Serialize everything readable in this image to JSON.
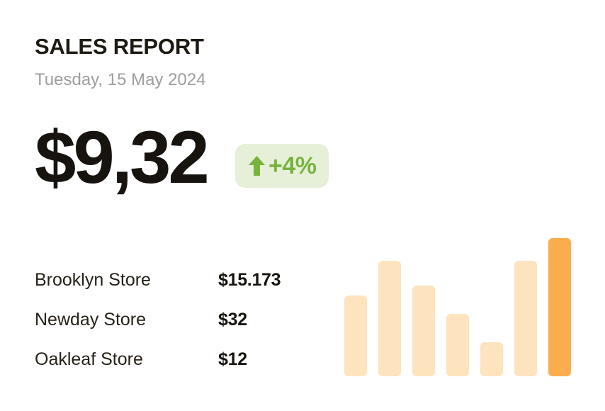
{
  "header": {
    "title": "SALES REPORT",
    "date": "Tuesday, 15 May 2024"
  },
  "summary": {
    "amount": "$9,32",
    "change": "+4%",
    "trend_icon": "arrow-up-icon"
  },
  "stores": {
    "items": [
      {
        "name": "Brooklyn Store",
        "value": "$15.173"
      },
      {
        "name": "Newday Store",
        "value": "$32"
      },
      {
        "name": "Oakleaf Store",
        "value": "$12"
      }
    ]
  },
  "chart_data": {
    "type": "bar",
    "values": [
      114,
      163,
      128,
      88,
      48,
      163,
      195
    ],
    "categories": [
      "",
      "",
      "",
      "",
      "",
      "",
      ""
    ],
    "highlight_index": 6,
    "title": "",
    "xlabel": "",
    "ylabel": "",
    "ylim": [
      0,
      195
    ],
    "grid": false,
    "legend": false,
    "bar_color": "#FDE3BE",
    "highlight_color": "#FBAD4D"
  },
  "colors": {
    "accent_green": "#77B33D",
    "badge_bg": "#E6EFD8",
    "text_dark": "#171410",
    "text_gray": "#9D9D9D",
    "bar": "#FDE3BE",
    "bar_highlight": "#FBAD4D"
  }
}
